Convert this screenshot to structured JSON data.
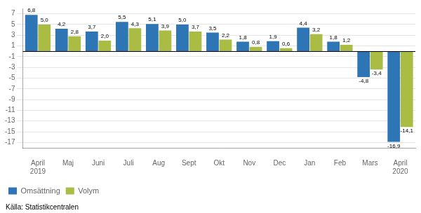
{
  "chart_data": {
    "type": "bar",
    "categories": [
      "April\n2019",
      "Maj",
      "Juni",
      "Juli",
      "Aug",
      "Sept",
      "Okt",
      "Nov",
      "Dec",
      "Jan",
      "Feb",
      "Mars",
      "April\n2020"
    ],
    "series": [
      {
        "name": "Omsättning",
        "color": "#2E75B6",
        "values": [
          6.8,
          4.2,
          3.7,
          5.5,
          5.1,
          5.0,
          3.5,
          1.8,
          1.9,
          4.4,
          1.8,
          -4.8,
          -16.9
        ],
        "value_labels": [
          "6,8",
          "4,2",
          "3,7",
          "5,5",
          "5,1",
          "5,0",
          "3,5",
          "1,8",
          "1,9",
          "4,4",
          "1,8",
          "-4,8",
          "-16,9"
        ]
      },
      {
        "name": "Volym",
        "color": "#AABC44",
        "values": [
          5.0,
          2.8,
          2.0,
          4.3,
          3.9,
          3.7,
          2.2,
          0.8,
          0.6,
          3.2,
          1.2,
          -3.4,
          -14.1
        ],
        "value_labels": [
          "5,0",
          "2,8",
          "2,0",
          "4,3",
          "3,9",
          "3,7",
          "2,2",
          "0,8",
          "0,6",
          "3,2",
          "1,2",
          "-3,4",
          "-14,1"
        ]
      }
    ],
    "ylim": [
      -18,
      8
    ],
    "yticks": [
      -17,
      -15,
      -13,
      -11,
      -9,
      -7,
      -5,
      -3,
      -1,
      1,
      3,
      5,
      7
    ],
    "grid": true,
    "legend": "lower left",
    "data_labels": true,
    "source": "Källa: Statistikcentralen"
  }
}
